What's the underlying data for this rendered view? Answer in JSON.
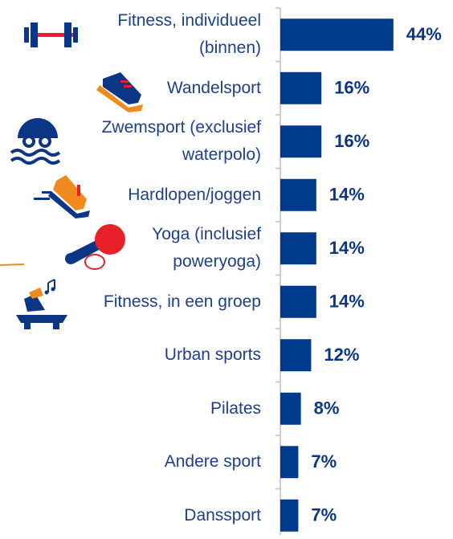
{
  "chart_data": {
    "type": "bar",
    "orientation": "horizontal",
    "categories": [
      "Fitness, individueel (binnen)",
      "Wandelsport",
      "Zwemsport (exclusief waterpolo)",
      "Hardlopen/joggen",
      "Yoga (inclusief poweryoga)",
      "Fitness, in een groep",
      "Urban sports",
      "Pilates",
      "Andere sport",
      "Danssport"
    ],
    "values": [
      44,
      16,
      16,
      14,
      14,
      14,
      12,
      8,
      7,
      7
    ],
    "value_labels": [
      "44%",
      "16%",
      "16%",
      "14%",
      "14%",
      "14%",
      "12%",
      "8%",
      "7%",
      "7%"
    ],
    "color": "#003a8c"
  }
}
